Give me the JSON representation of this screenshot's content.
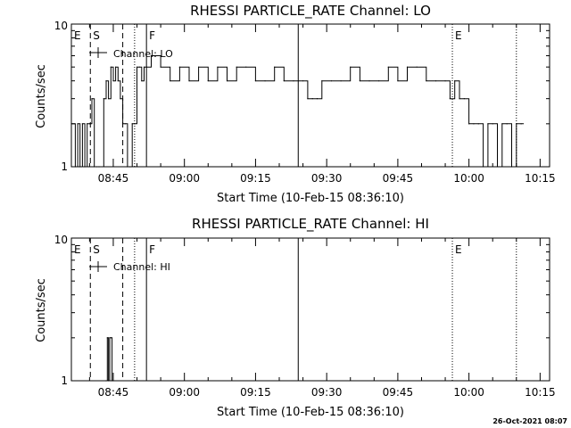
{
  "chart_data": [
    {
      "type": "line",
      "title": "RHESSI PARTICLE_RATE Channel: LO",
      "xlabel": "Start Time (10-Feb-15 08:36:10)",
      "ylabel": "Counts/sec",
      "yscale": "log",
      "ylim": [
        1,
        10
      ],
      "y_ticks": [
        1,
        10
      ],
      "xlim": [
        "08:36:10",
        "10:17:00"
      ],
      "x_ticks": [
        "08:45",
        "09:00",
        "09:15",
        "09:30",
        "09:45",
        "10:00",
        "10:15"
      ],
      "grid": false,
      "legend": {
        "label": "Channel: LO",
        "placement": "top-left"
      },
      "markers": [
        {
          "label": "E",
          "time": "08:36:10",
          "style": "none"
        },
        {
          "label": "S",
          "time": "08:40:10",
          "style": "dashed"
        },
        {
          "label": "",
          "time": "08:47:00",
          "style": "dashed"
        },
        {
          "label": "",
          "time": "08:49:30",
          "style": "dotted"
        },
        {
          "label": "F",
          "time": "08:52:00",
          "style": "solid"
        },
        {
          "label": "",
          "time": "09:24:00",
          "style": "solid"
        },
        {
          "label": "E",
          "time": "09:56:30",
          "style": "dotted"
        },
        {
          "label": "",
          "time": "10:10:00",
          "style": "dotted"
        }
      ],
      "series": [
        {
          "name": "Channel: LO",
          "x": [
            "08:36:10",
            "08:37:00",
            "08:37:30",
            "08:38:00",
            "08:38:30",
            "08:39:00",
            "08:39:30",
            "08:40:00",
            "08:40:30",
            "08:41:00",
            "08:41:30",
            "08:42:00",
            "08:43:00",
            "08:43:30",
            "08:44:00",
            "08:44:30",
            "08:45:00",
            "08:45:30",
            "08:46:00",
            "08:46:30",
            "08:47:00",
            "08:47:30",
            "08:48:00",
            "08:48:30",
            "08:49:00",
            "08:49:30",
            "08:50:00",
            "08:50:30",
            "08:51:00",
            "08:51:30",
            "08:52:00",
            "08:53:00",
            "08:55:00",
            "08:57:00",
            "08:59:00",
            "09:01:00",
            "09:03:00",
            "09:05:00",
            "09:07:00",
            "09:09:00",
            "09:11:00",
            "09:13:00",
            "09:15:00",
            "09:17:00",
            "09:19:00",
            "09:21:00",
            "09:23:00",
            "09:25:00",
            "09:26:00",
            "09:27:00",
            "09:28:00",
            "09:29:00",
            "09:31:00",
            "09:33:00",
            "09:35:00",
            "09:37:00",
            "09:39:00",
            "09:41:00",
            "09:43:00",
            "09:45:00",
            "09:47:00",
            "09:49:00",
            "09:51:00",
            "09:53:00",
            "09:55:00",
            "09:56:00",
            "09:57:00",
            "09:58:00",
            "09:59:00",
            "10:00:00",
            "10:01:00",
            "10:02:00",
            "10:03:00",
            "10:04:00",
            "10:05:00",
            "10:06:00",
            "10:07:00",
            "10:08:00",
            "10:09:00",
            "10:10:00",
            "10:11:00"
          ],
          "y": [
            2,
            1,
            2,
            1,
            2,
            1,
            2,
            2,
            3,
            1,
            1,
            1,
            3,
            4,
            3,
            5,
            4,
            5,
            4,
            3,
            2,
            2,
            1,
            1,
            2,
            2,
            5,
            5,
            4,
            5,
            5,
            6,
            5,
            4,
            5,
            4,
            5,
            4,
            5,
            4,
            5,
            5,
            4,
            4,
            5,
            4,
            4,
            4,
            3,
            3,
            3,
            4,
            4,
            4,
            5,
            4,
            4,
            4,
            5,
            4,
            5,
            5,
            4,
            4,
            4,
            3,
            4,
            3,
            3,
            2,
            2,
            2,
            1,
            2,
            2,
            1,
            2,
            2,
            1,
            2,
            2
          ]
        }
      ]
    },
    {
      "type": "line",
      "title": "RHESSI PARTICLE_RATE Channel: HI",
      "xlabel": "Start Time (10-Feb-15 08:36:10)",
      "ylabel": "Counts/sec",
      "yscale": "log",
      "ylim": [
        1,
        10
      ],
      "y_ticks": [
        1,
        10
      ],
      "xlim": [
        "08:36:10",
        "10:17:00"
      ],
      "x_ticks": [
        "08:45",
        "09:00",
        "09:15",
        "09:30",
        "09:45",
        "10:00",
        "10:15"
      ],
      "grid": false,
      "legend": {
        "label": "Channel: HI",
        "placement": "top-left"
      },
      "markers": [
        {
          "label": "E",
          "time": "08:36:10",
          "style": "none"
        },
        {
          "label": "S",
          "time": "08:40:10",
          "style": "dashed"
        },
        {
          "label": "",
          "time": "08:47:00",
          "style": "dashed"
        },
        {
          "label": "",
          "time": "08:49:30",
          "style": "dotted"
        },
        {
          "label": "F",
          "time": "08:52:00",
          "style": "solid"
        },
        {
          "label": "",
          "time": "09:24:00",
          "style": "solid"
        },
        {
          "label": "E",
          "time": "09:56:30",
          "style": "dotted"
        },
        {
          "label": "",
          "time": "10:10:00",
          "style": "dotted"
        }
      ],
      "series": [
        {
          "name": "Channel: HI",
          "x": [
            "08:43:30",
            "08:43:45",
            "08:44:00",
            "08:44:15",
            "08:44:30",
            "08:44:45",
            "08:45:00"
          ],
          "y": [
            1,
            2,
            1,
            2,
            2,
            1,
            1
          ]
        }
      ]
    }
  ],
  "footer": {
    "timestamp": "26-Oct-2021 08:07"
  }
}
